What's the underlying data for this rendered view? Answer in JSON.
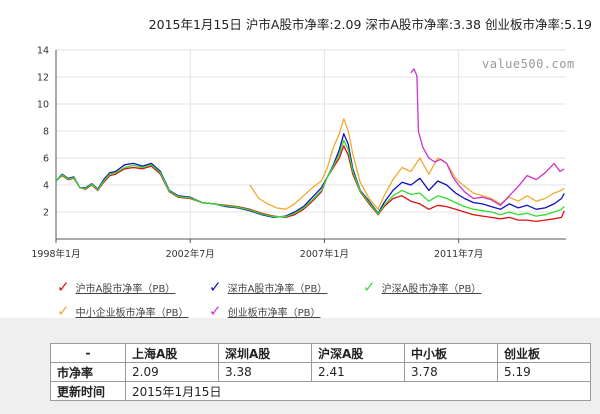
{
  "headline": "2015年1月15日  沪市A股市净率:2.09  深市A股市净率:3.38  创业板市净率:5.19",
  "watermark": "value500.com",
  "colors": {
    "sh": "#dd1111",
    "sz": "#1111bb",
    "hs": "#33dd33",
    "sme": "#eeaa33",
    "gem": "#cc33cc"
  },
  "chart_data": {
    "type": "line",
    "ylim": [
      0,
      14
    ],
    "yticks": [
      2,
      4,
      6,
      8,
      10,
      12,
      14
    ],
    "xlim": [
      1998.0,
      2015.1
    ],
    "xticks": [
      {
        "value": 1998.0,
        "label": "1998年1月"
      },
      {
        "value": 2002.5,
        "label": "2002年7月"
      },
      {
        "value": 2007.0,
        "label": "2007年1月"
      },
      {
        "value": 2011.5,
        "label": "2011年7月"
      }
    ],
    "series": [
      {
        "key": "sh",
        "name": "沪市A股市净率（PB）",
        "color": "#dd1111",
        "x": [
          1998.0,
          1998.2,
          1998.4,
          1998.6,
          1998.8,
          1999.0,
          1999.2,
          1999.4,
          1999.6,
          1999.8,
          2000.0,
          2000.3,
          2000.6,
          2000.9,
          2001.2,
          2001.5,
          2001.8,
          2002.1,
          2002.5,
          2002.9,
          2003.3,
          2003.7,
          2004.1,
          2004.5,
          2004.9,
          2005.3,
          2005.7,
          2006.0,
          2006.3,
          2006.6,
          2006.9,
          2007.1,
          2007.3,
          2007.5,
          2007.65,
          2007.8,
          2007.95,
          2008.2,
          2008.5,
          2008.8,
          2009.0,
          2009.3,
          2009.6,
          2009.9,
          2010.2,
          2010.5,
          2010.8,
          2011.1,
          2011.4,
          2011.7,
          2012.0,
          2012.3,
          2012.6,
          2012.9,
          2013.2,
          2013.5,
          2013.8,
          2014.1,
          2014.4,
          2014.7,
          2014.95,
          2015.04
        ],
        "y": [
          4.3,
          4.7,
          4.4,
          4.5,
          3.8,
          3.7,
          4.0,
          3.6,
          4.2,
          4.7,
          4.8,
          5.2,
          5.3,
          5.2,
          5.4,
          4.8,
          3.5,
          3.1,
          3.0,
          2.7,
          2.6,
          2.5,
          2.4,
          2.2,
          1.9,
          1.7,
          1.6,
          1.8,
          2.2,
          2.8,
          3.5,
          4.6,
          5.3,
          6.0,
          6.9,
          6.2,
          4.8,
          3.5,
          2.6,
          1.8,
          2.4,
          3.0,
          3.2,
          2.8,
          2.6,
          2.2,
          2.5,
          2.4,
          2.2,
          2.0,
          1.8,
          1.7,
          1.6,
          1.5,
          1.6,
          1.4,
          1.4,
          1.3,
          1.4,
          1.5,
          1.6,
          2.09
        ]
      },
      {
        "key": "sz",
        "name": "深市A股市净率（PB）",
        "color": "#1111bb",
        "x": [
          1998.0,
          1998.2,
          1998.4,
          1998.6,
          1998.8,
          1999.0,
          1999.2,
          1999.4,
          1999.6,
          1999.8,
          2000.0,
          2000.3,
          2000.6,
          2000.9,
          2001.2,
          2001.5,
          2001.8,
          2002.1,
          2002.5,
          2002.9,
          2003.3,
          2003.7,
          2004.1,
          2004.5,
          2004.9,
          2005.3,
          2005.7,
          2006.0,
          2006.3,
          2006.6,
          2006.9,
          2007.1,
          2007.3,
          2007.5,
          2007.65,
          2007.8,
          2007.95,
          2008.2,
          2008.5,
          2008.8,
          2009.0,
          2009.3,
          2009.6,
          2009.9,
          2010.2,
          2010.5,
          2010.8,
          2011.1,
          2011.4,
          2011.7,
          2012.0,
          2012.3,
          2012.6,
          2012.9,
          2013.2,
          2013.5,
          2013.8,
          2014.1,
          2014.4,
          2014.7,
          2014.95,
          2015.04
        ],
        "y": [
          4.3,
          4.8,
          4.5,
          4.6,
          3.8,
          3.8,
          4.1,
          3.7,
          4.4,
          4.9,
          5.0,
          5.5,
          5.6,
          5.4,
          5.6,
          5.0,
          3.6,
          3.2,
          3.1,
          2.7,
          2.6,
          2.4,
          2.3,
          2.1,
          1.8,
          1.6,
          1.7,
          2.0,
          2.4,
          3.1,
          3.8,
          4.6,
          5.5,
          6.6,
          7.8,
          7.0,
          5.2,
          3.6,
          2.8,
          1.9,
          2.7,
          3.6,
          4.2,
          4.0,
          4.5,
          3.6,
          4.3,
          4.0,
          3.4,
          3.0,
          2.7,
          2.6,
          2.4,
          2.2,
          2.6,
          2.3,
          2.5,
          2.2,
          2.3,
          2.6,
          3.0,
          3.38
        ]
      },
      {
        "key": "hs",
        "name": "沪深A股市净率（PB）",
        "color": "#33dd33",
        "x": [
          1998.0,
          1998.2,
          1998.4,
          1998.6,
          1998.8,
          1999.0,
          1999.2,
          1999.4,
          1999.6,
          1999.8,
          2000.0,
          2000.3,
          2000.6,
          2000.9,
          2001.2,
          2001.5,
          2001.8,
          2002.1,
          2002.5,
          2002.9,
          2003.3,
          2003.7,
          2004.1,
          2004.5,
          2004.9,
          2005.3,
          2005.7,
          2006.0,
          2006.3,
          2006.6,
          2006.9,
          2007.1,
          2007.3,
          2007.5,
          2007.65,
          2007.8,
          2007.95,
          2008.2,
          2008.5,
          2008.8,
          2009.0,
          2009.3,
          2009.6,
          2009.9,
          2010.2,
          2010.5,
          2010.8,
          2011.1,
          2011.4,
          2011.7,
          2012.0,
          2012.3,
          2012.6,
          2012.9,
          2013.2,
          2013.5,
          2013.8,
          2014.1,
          2014.4,
          2014.7,
          2014.95,
          2015.04
        ],
        "y": [
          4.3,
          4.75,
          4.45,
          4.55,
          3.8,
          3.75,
          4.05,
          3.65,
          4.3,
          4.8,
          4.9,
          5.3,
          5.45,
          5.3,
          5.5,
          4.9,
          3.55,
          3.15,
          3.05,
          2.7,
          2.6,
          2.45,
          2.35,
          2.15,
          1.85,
          1.65,
          1.65,
          1.9,
          2.3,
          2.9,
          3.6,
          4.6,
          5.4,
          6.3,
          7.3,
          6.6,
          5.0,
          3.55,
          2.7,
          1.85,
          2.5,
          3.2,
          3.6,
          3.3,
          3.4,
          2.8,
          3.2,
          3.0,
          2.7,
          2.4,
          2.2,
          2.1,
          2.0,
          1.8,
          2.0,
          1.8,
          1.9,
          1.7,
          1.8,
          2.0,
          2.2,
          2.41
        ]
      },
      {
        "key": "sme",
        "name": "中小企业板市净率（PB）",
        "color": "#eeaa33",
        "x": [
          2004.5,
          2004.8,
          2005.1,
          2005.4,
          2005.7,
          2006.0,
          2006.3,
          2006.6,
          2006.9,
          2007.1,
          2007.3,
          2007.5,
          2007.65,
          2007.8,
          2007.95,
          2008.2,
          2008.5,
          2008.8,
          2009.0,
          2009.3,
          2009.6,
          2009.9,
          2010.2,
          2010.5,
          2010.8,
          2011.1,
          2011.4,
          2011.7,
          2012.0,
          2012.3,
          2012.6,
          2012.9,
          2013.2,
          2013.5,
          2013.8,
          2014.1,
          2014.4,
          2014.7,
          2014.95,
          2015.04
        ],
        "y": [
          4.0,
          3.0,
          2.6,
          2.3,
          2.2,
          2.6,
          3.2,
          3.8,
          4.3,
          5.3,
          6.8,
          7.8,
          8.9,
          8.0,
          6.3,
          4.2,
          3.0,
          2.2,
          3.2,
          4.4,
          5.3,
          5.0,
          6.0,
          4.8,
          6.0,
          5.6,
          4.5,
          3.9,
          3.4,
          3.2,
          3.0,
          2.6,
          3.1,
          2.8,
          3.2,
          2.8,
          3.0,
          3.4,
          3.6,
          3.78
        ]
      },
      {
        "key": "gem",
        "name": "创业板市净率（PB）",
        "color": "#cc33cc",
        "x": [
          2009.9,
          2010.0,
          2010.1,
          2010.15,
          2010.3,
          2010.5,
          2010.7,
          2010.9,
          2011.1,
          2011.3,
          2011.5,
          2011.7,
          2012.0,
          2012.3,
          2012.6,
          2012.9,
          2013.2,
          2013.5,
          2013.8,
          2014.1,
          2014.4,
          2014.7,
          2014.9,
          2015.04
        ],
        "y": [
          12.3,
          12.6,
          12.1,
          8.0,
          6.8,
          6.0,
          5.7,
          5.9,
          5.6,
          4.6,
          4.0,
          3.5,
          3.0,
          3.1,
          2.9,
          2.5,
          3.2,
          3.9,
          4.7,
          4.4,
          4.9,
          5.6,
          5.0,
          5.19
        ]
      }
    ]
  },
  "legend": [
    {
      "label": "沪市A股市净率（PB）",
      "color": "#dd1111"
    },
    {
      "label": "深市A股市净率（PB）",
      "color": "#1111bb"
    },
    {
      "label": "沪深A股市净率（PB）",
      "color": "#33dd33"
    },
    {
      "label": "中小企业板市净率（PB）",
      "color": "#eeaa33"
    },
    {
      "label": "创业板市净率（PB）",
      "color": "#cc33cc"
    }
  ],
  "table": {
    "header_dash": "-",
    "columns": [
      "上海A股",
      "深圳A股",
      "沪深A股",
      "中小板",
      "创业板"
    ],
    "pb_label": "市净率",
    "pb_values": [
      "2.09",
      "3.38",
      "2.41",
      "3.78",
      "5.19"
    ],
    "update_label": "更新时间",
    "update_value": "2015年1月15日"
  }
}
